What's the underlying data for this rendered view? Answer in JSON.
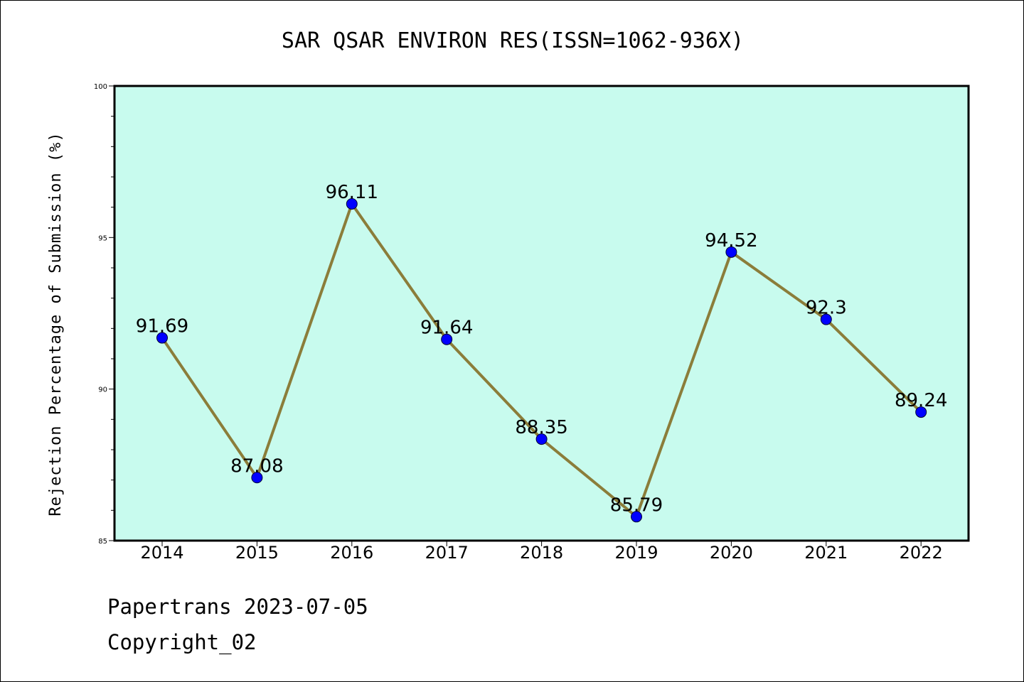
{
  "chart_data": {
    "type": "line",
    "title": "SAR QSAR ENVIRON RES(ISSN=1062-936X)",
    "xlabel": "",
    "ylabel": "Rejection Percentage of Submission (%)",
    "categories": [
      "2014",
      "2015",
      "2016",
      "2017",
      "2018",
      "2019",
      "2020",
      "2021",
      "2022"
    ],
    "series": [
      {
        "values": [
          91.69,
          87.08,
          96.11,
          91.64,
          88.35,
          85.79,
          94.52,
          92.3,
          89.24
        ],
        "data_labels": [
          "91.69",
          "87.08",
          "96.11",
          "91.64",
          "88.35",
          "85.79",
          "94.52",
          "92.3",
          "89.24"
        ],
        "line_color": "#8b7d3a",
        "marker_color": "#0000ff"
      }
    ],
    "ylim": [
      85,
      100
    ],
    "yticks": [
      "85",
      "90",
      "95",
      "100"
    ],
    "plot_background": "#c8fbee",
    "grid": false
  },
  "footer": {
    "line1": "Papertrans 2023-07-05",
    "line2": "Copyright_02"
  }
}
